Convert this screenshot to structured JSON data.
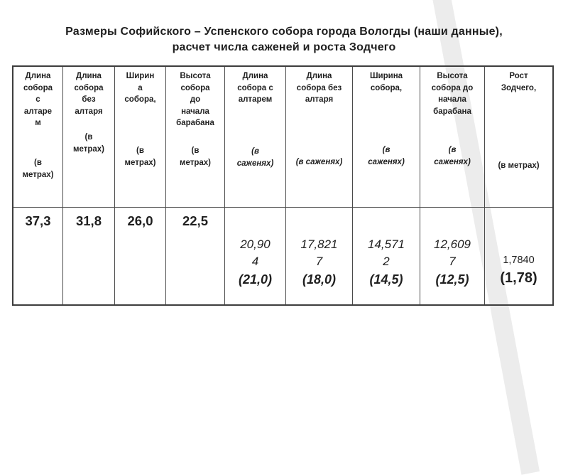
{
  "slide": {
    "title_line1": "Размеры Софийского – Успенского собора города Вологды (наши данные),",
    "title_line2": "расчет числа саженей и роста Зодчего"
  },
  "table": {
    "columns": [
      {
        "label": "Длина собора с алтарем (в метрах)",
        "name": "Длина\nсобора\nс\nалтаре\nм",
        "unit": "(в\nметрах)"
      },
      {
        "label": "Длина собора без алтаря (в метрах)",
        "name": "Длина\nсобора\nбез\nалтаря",
        "unit": "(в\nметрах)"
      },
      {
        "label": "Ширина собора, (в метрах)",
        "name": "Ширин\nа\nсобора,",
        "unit": "(в\nметрах)"
      },
      {
        "label": "Высота собора до начала барабана (в метрах)",
        "name": "Высота\nсобора\nдо\nначала\nбарабана",
        "unit": "(в\nметрах)"
      },
      {
        "label": "Длина собора с алтарем (в саженях)",
        "name": "Длина\nсобора с\nалтарем",
        "unit": "(в\nсаженях)"
      },
      {
        "label": "Длина собора без алтаря (в саженях)",
        "name": "Длина\nсобора без\nалтаря",
        "unit": "(в саженях)"
      },
      {
        "label": "Ширина собора, (в саженях)",
        "name": "Ширина\nсобора,",
        "unit": "(в\nсаженях)"
      },
      {
        "label": "Высота собора до начала барабана (в саженях)",
        "name": "Высота\nсобора до\nначала\nбарабана",
        "unit": "(в\nсаженях)"
      },
      {
        "label": "Рост Зодчего, (в метрах)",
        "name": "Рост\nЗодчего,",
        "unit": "(в метрах)"
      }
    ],
    "row": [
      {
        "value": "37,3"
      },
      {
        "value": "31,8"
      },
      {
        "value": "26,0"
      },
      {
        "value": "22,5"
      },
      {
        "value": "20,904",
        "display": "20,90\n4",
        "rounded": "(21,0)"
      },
      {
        "value": "17,8217",
        "display": "17,821\n7",
        "rounded": "(18,0)"
      },
      {
        "value": "14,5712",
        "display": "14,571\n2",
        "rounded": "(14,5)"
      },
      {
        "value": "12,6097",
        "display": "12,609\n7",
        "rounded": "(12,5)"
      },
      {
        "value": "1,7840",
        "display": "1,7840",
        "rounded": "(1,78)"
      }
    ]
  },
  "colors": {
    "background": "#ffffff",
    "stripe": "#ececec",
    "border": "#4a4a4a",
    "text": "#1f1f1f"
  }
}
